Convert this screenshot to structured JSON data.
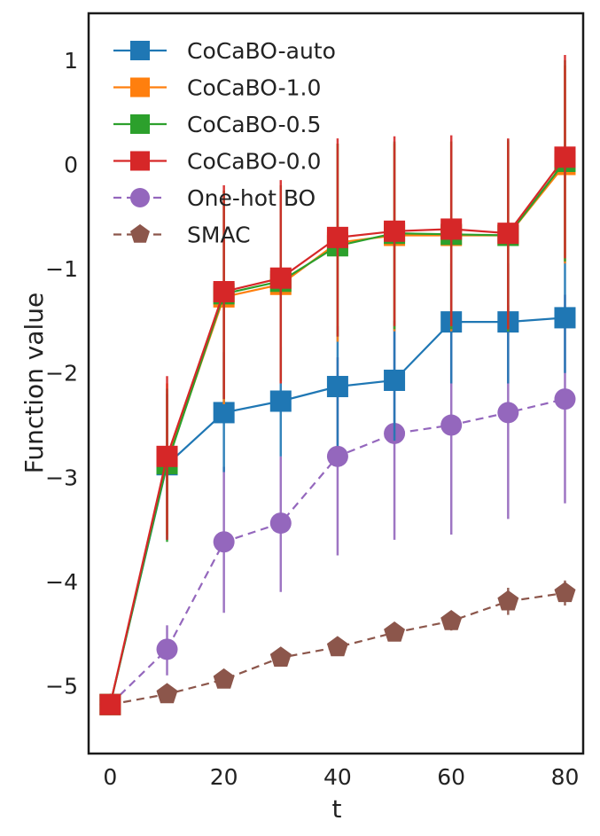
{
  "chart_data": {
    "type": "line",
    "title": "",
    "xlabel": "t",
    "ylabel": "Function value",
    "xlim": [
      -3.8,
      83.2
    ],
    "ylim": [
      -5.65,
      1.45
    ],
    "xticks": [
      0,
      20,
      40,
      60,
      80
    ],
    "xtick_labels": [
      "0",
      "20",
      "40",
      "60",
      "80"
    ],
    "yticks": [
      1,
      0,
      -1,
      -2,
      -3,
      -4,
      -5
    ],
    "ytick_labels": [
      "1",
      "0",
      "−1",
      "−2",
      "−3",
      "−4",
      "−5"
    ],
    "grid": false,
    "legend_position": "top-left",
    "x": [
      0,
      10,
      20,
      30,
      40,
      50,
      60,
      70,
      80
    ],
    "series": [
      {
        "name": "CoCaBO-auto",
        "color": "#1f77b4",
        "marker": "square",
        "dashed": false,
        "values": [
          -5.18,
          -2.88,
          -2.38,
          -2.27,
          -2.13,
          -2.07,
          -1.51,
          -1.51,
          -1.47
        ],
        "err_low": [
          -5.18,
          -3.6,
          -2.95,
          -2.8,
          -2.7,
          -2.65,
          -2.1,
          -2.1,
          -2.0
        ],
        "err_high": [
          -5.18,
          -2.2,
          -1.8,
          -1.75,
          -1.55,
          -1.5,
          -0.95,
          -0.95,
          -0.9
        ]
      },
      {
        "name": "CoCaBO-1.0",
        "color": "#ff7f0e",
        "marker": "square",
        "dashed": false,
        "values": [
          -5.18,
          -2.85,
          -1.27,
          -1.15,
          -0.75,
          -0.68,
          -0.68,
          -0.68,
          0.0
        ],
        "err_low": [
          -5.18,
          -3.55,
          -2.3,
          -2.1,
          -1.7,
          -1.6,
          -1.6,
          -1.6,
          -0.95
        ],
        "err_high": [
          -5.18,
          -2.1,
          -0.25,
          -0.2,
          0.2,
          0.2,
          0.22,
          0.22,
          0.95
        ]
      },
      {
        "name": "CoCaBO-0.5",
        "color": "#2ca02c",
        "marker": "square",
        "dashed": false,
        "values": [
          -5.18,
          -2.87,
          -1.24,
          -1.12,
          -0.78,
          -0.66,
          -0.67,
          -0.68,
          0.03
        ],
        "err_low": [
          -5.18,
          -3.62,
          -2.25,
          -2.08,
          -1.65,
          -1.58,
          -1.58,
          -1.6,
          -0.93
        ],
        "err_high": [
          -5.18,
          -2.15,
          -0.25,
          -0.2,
          0.2,
          0.22,
          0.22,
          0.24,
          1.0
        ]
      },
      {
        "name": "CoCaBO-0.0",
        "color": "#d62728",
        "marker": "square",
        "dashed": false,
        "values": [
          -5.18,
          -2.8,
          -1.22,
          -1.09,
          -0.7,
          -0.64,
          -0.62,
          -0.66,
          0.07
        ],
        "err_low": [
          -5.18,
          -3.6,
          -2.25,
          -2.1,
          -1.65,
          -1.55,
          -1.55,
          -1.58,
          -0.9
        ],
        "err_high": [
          -5.18,
          -2.03,
          -0.2,
          -0.15,
          0.25,
          0.27,
          0.28,
          0.25,
          1.05
        ]
      },
      {
        "name": "One-hot BO",
        "color": "#9467bd",
        "marker": "circle",
        "dashed": true,
        "values": [
          -5.18,
          -4.65,
          -3.62,
          -3.44,
          -2.8,
          -2.58,
          -2.5,
          -2.38,
          -2.25
        ],
        "err_low": [
          -5.18,
          -4.9,
          -4.3,
          -4.1,
          -3.75,
          -3.6,
          -3.55,
          -3.4,
          -3.25
        ],
        "err_high": [
          -5.18,
          -4.42,
          -2.9,
          -2.8,
          -1.85,
          -1.55,
          -1.45,
          -1.35,
          -1.25
        ]
      },
      {
        "name": "SMAC",
        "color": "#8c564b",
        "marker": "pentagon",
        "dashed": true,
        "values": [
          -5.18,
          -5.08,
          -4.94,
          -4.73,
          -4.63,
          -4.49,
          -4.38,
          -4.19,
          -4.11
        ],
        "err_low": [
          -5.28,
          -5.15,
          -5.02,
          -4.8,
          -4.7,
          -4.56,
          -4.47,
          -4.32,
          -4.23
        ],
        "err_high": [
          -5.08,
          -5.01,
          -4.86,
          -4.66,
          -4.56,
          -4.42,
          -4.29,
          -4.06,
          -3.99
        ]
      }
    ]
  }
}
